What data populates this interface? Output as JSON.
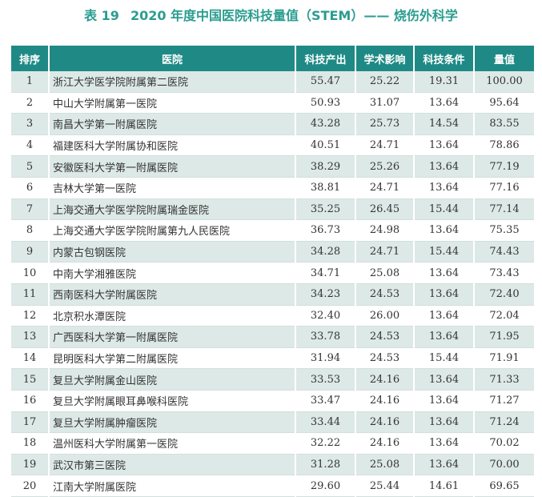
{
  "title": {
    "number": "表 19",
    "text": "2020 年度中国医院科技量值（STEM）—— 烧伤外科学"
  },
  "table": {
    "headers": [
      "排序",
      "医院",
      "科技产出",
      "学术影响",
      "科技条件",
      "量值"
    ],
    "rows": [
      [
        "1",
        "浙江大学医学院附属第二医院",
        "55.47",
        "25.22",
        "19.31",
        "100.00"
      ],
      [
        "2",
        "中山大学附属第一医院",
        "50.93",
        "31.07",
        "13.64",
        "95.64"
      ],
      [
        "3",
        "南昌大学第一附属医院",
        "43.28",
        "25.73",
        "14.54",
        "83.55"
      ],
      [
        "4",
        "福建医科大学附属协和医院",
        "40.51",
        "24.71",
        "13.64",
        "78.86"
      ],
      [
        "5",
        "安徽医科大学第一附属医院",
        "38.29",
        "25.26",
        "13.64",
        "77.19"
      ],
      [
        "6",
        "吉林大学第一医院",
        "38.81",
        "24.71",
        "13.64",
        "77.16"
      ],
      [
        "7",
        "上海交通大学医学院附属瑞金医院",
        "35.25",
        "26.45",
        "15.44",
        "77.14"
      ],
      [
        "8",
        "上海交通大学医学院附属第九人民医院",
        "36.73",
        "24.98",
        "13.64",
        "75.35"
      ],
      [
        "9",
        "内蒙古包钢医院",
        "34.28",
        "24.71",
        "15.44",
        "74.43"
      ],
      [
        "10",
        "中南大学湘雅医院",
        "34.71",
        "25.08",
        "13.64",
        "73.43"
      ],
      [
        "11",
        "西南医科大学附属医院",
        "34.23",
        "24.53",
        "13.64",
        "72.40"
      ],
      [
        "12",
        "北京积水潭医院",
        "32.40",
        "26.00",
        "13.64",
        "72.04"
      ],
      [
        "13",
        "广西医科大学第一附属医院",
        "33.78",
        "24.53",
        "13.64",
        "71.95"
      ],
      [
        "14",
        "昆明医科大学第二附属医院",
        "31.94",
        "24.53",
        "15.44",
        "71.91"
      ],
      [
        "15",
        "复旦大学附属金山医院",
        "33.53",
        "24.16",
        "13.64",
        "71.33"
      ],
      [
        "16",
        "复旦大学附属眼耳鼻喉科医院",
        "33.47",
        "24.16",
        "13.64",
        "71.27"
      ],
      [
        "17",
        "复旦大学附属肿瘤医院",
        "33.44",
        "24.16",
        "13.64",
        "71.24"
      ],
      [
        "18",
        "温州医科大学附属第一医院",
        "32.22",
        "24.16",
        "13.64",
        "70.02"
      ],
      [
        "19",
        "武汉市第三医院",
        "31.28",
        "25.08",
        "13.64",
        "70.00"
      ],
      [
        "20",
        "江南大学附属医院",
        "29.60",
        "25.44",
        "14.61",
        "69.65"
      ]
    ]
  },
  "colors": {
    "title": "#2a9d8f",
    "header_bg": "#1f8a85",
    "header_text": "#ffffff",
    "stripe_bg": "#dde9e6",
    "body_text": "#333333"
  }
}
